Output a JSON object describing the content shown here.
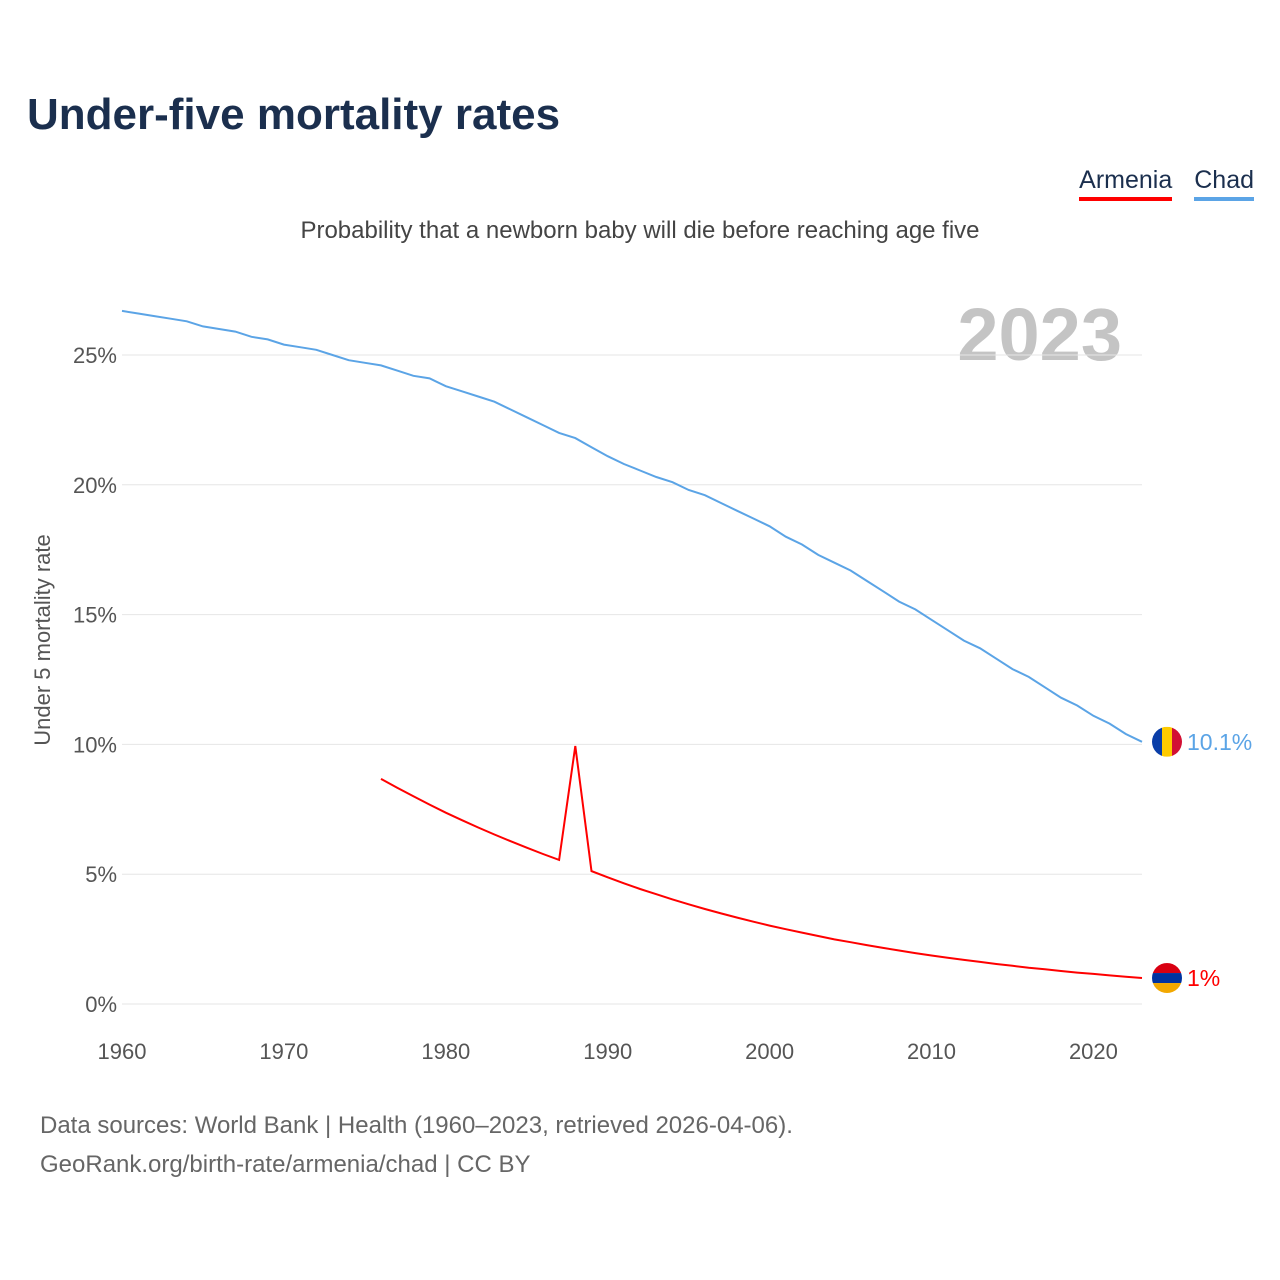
{
  "title": "Under-five mortality rates",
  "subtitle": "Probability that a newborn baby will die before reaching age five",
  "year_label": "2023",
  "footer": {
    "line1": "Data sources: World Bank | Health (1960–2023, retrieved 2026-04-06).",
    "line2": "GeoRank.org/birth-rate/armenia/chad | CC BY"
  },
  "chart_data": {
    "type": "line",
    "title": "Under-five mortality rates",
    "ylabel": "Under 5 mortality rate",
    "xlabel": "",
    "xlim": [
      1960,
      2023
    ],
    "ylim": [
      0,
      27
    ],
    "x_ticks": [
      1960,
      1970,
      1980,
      1990,
      2000,
      2010,
      2020
    ],
    "y_ticks": [
      0,
      5,
      10,
      15,
      20,
      25
    ],
    "y_tick_labels": [
      "0%",
      "5%",
      "10%",
      "15%",
      "20%",
      "25%"
    ],
    "grid": true,
    "legend_position": "top-right",
    "series": [
      {
        "name": "Armenia",
        "color": "#ff0000",
        "end_label": "1%",
        "start_year": 1976,
        "values": [
          8.67,
          8.33,
          8.0,
          7.68,
          7.37,
          7.08,
          6.8,
          6.53,
          6.27,
          6.02,
          5.78,
          5.55,
          9.94,
          5.12,
          4.88,
          4.65,
          4.43,
          4.23,
          4.03,
          3.84,
          3.66,
          3.49,
          3.33,
          3.17,
          3.02,
          2.88,
          2.75,
          2.62,
          2.49,
          2.38,
          2.27,
          2.16,
          2.06,
          1.96,
          1.87,
          1.78,
          1.7,
          1.62,
          1.54,
          1.47,
          1.4,
          1.34,
          1.27,
          1.21,
          1.16,
          1.1,
          1.05,
          1.0
        ]
      },
      {
        "name": "Chad",
        "color": "#5ba4e6",
        "end_label": "10.1%",
        "start_year": 1960,
        "values": [
          26.7,
          26.6,
          26.5,
          26.4,
          26.3,
          26.1,
          26.0,
          25.9,
          25.7,
          25.6,
          25.4,
          25.3,
          25.2,
          25.0,
          24.8,
          24.7,
          24.6,
          24.4,
          24.2,
          24.1,
          23.8,
          23.6,
          23.4,
          23.2,
          22.9,
          22.6,
          22.3,
          22.0,
          21.8,
          21.45,
          21.1,
          20.8,
          20.55,
          20.3,
          20.1,
          19.8,
          19.6,
          19.3,
          19.0,
          18.7,
          18.4,
          18.0,
          17.7,
          17.3,
          17.0,
          16.7,
          16.3,
          15.9,
          15.5,
          15.2,
          14.8,
          14.4,
          14.0,
          13.7,
          13.3,
          12.9,
          12.6,
          12.2,
          11.8,
          11.5,
          11.1,
          10.8,
          10.4,
          10.1
        ]
      }
    ]
  }
}
